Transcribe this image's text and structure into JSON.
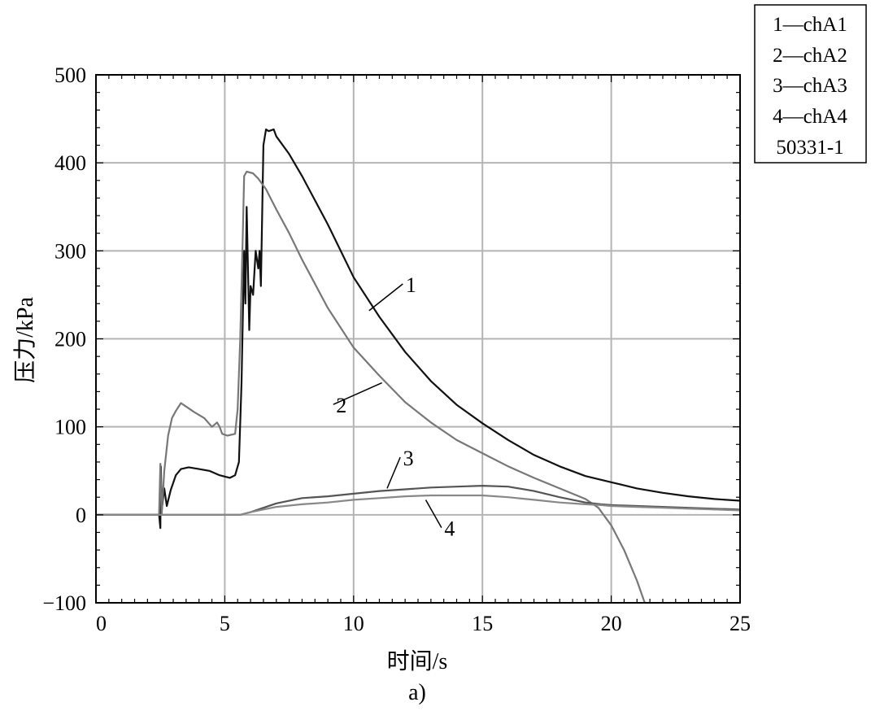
{
  "chart_data": {
    "type": "line",
    "xlabel": "时间/s",
    "ylabel": "压力/kPa",
    "caption": "a)",
    "xlim": [
      0,
      25
    ],
    "ylim": [
      -100,
      500
    ],
    "xticks": [
      0,
      5,
      10,
      15,
      20,
      25
    ],
    "yticks": [
      -100,
      0,
      100,
      200,
      300,
      400,
      500
    ],
    "ytick_labels": [
      "−100",
      "0",
      "100",
      "200",
      "300",
      "400",
      "500"
    ],
    "grid": true,
    "legend": {
      "placement": "top-right, outside",
      "entries": [
        "1—chA1",
        "2—chA2",
        "3—chA3",
        "4—chA4",
        "50331-1"
      ]
    },
    "series": [
      {
        "name": "1",
        "color": "#111111",
        "points": [
          [
            0,
            0
          ],
          [
            2.45,
            0
          ],
          [
            2.5,
            -15
          ],
          [
            2.52,
            55
          ],
          [
            2.55,
            5
          ],
          [
            2.65,
            30
          ],
          [
            2.75,
            10
          ],
          [
            2.9,
            28
          ],
          [
            3.1,
            45
          ],
          [
            3.3,
            52
          ],
          [
            3.6,
            54
          ],
          [
            4.0,
            52
          ],
          [
            4.4,
            50
          ],
          [
            4.8,
            45
          ],
          [
            5.2,
            42
          ],
          [
            5.4,
            45
          ],
          [
            5.55,
            60
          ],
          [
            5.65,
            150
          ],
          [
            5.75,
            300
          ],
          [
            5.8,
            240
          ],
          [
            5.85,
            350
          ],
          [
            5.95,
            210
          ],
          [
            6.0,
            260
          ],
          [
            6.1,
            250
          ],
          [
            6.2,
            300
          ],
          [
            6.3,
            280
          ],
          [
            6.35,
            300
          ],
          [
            6.4,
            260
          ],
          [
            6.5,
            420
          ],
          [
            6.6,
            438
          ],
          [
            6.7,
            436
          ],
          [
            6.9,
            438
          ],
          [
            7.0,
            430
          ],
          [
            7.5,
            410
          ],
          [
            8,
            385
          ],
          [
            9,
            330
          ],
          [
            10,
            270
          ],
          [
            11,
            225
          ],
          [
            12,
            185
          ],
          [
            13,
            152
          ],
          [
            14,
            125
          ],
          [
            15,
            104
          ],
          [
            16,
            85
          ],
          [
            17,
            68
          ],
          [
            18,
            55
          ],
          [
            19,
            44
          ],
          [
            20,
            37
          ],
          [
            21,
            30
          ],
          [
            22,
            25
          ],
          [
            23,
            21
          ],
          [
            24,
            18
          ],
          [
            25,
            16
          ]
        ]
      },
      {
        "name": "2",
        "color": "#777777",
        "points": [
          [
            0,
            0
          ],
          [
            2.45,
            0
          ],
          [
            2.5,
            58
          ],
          [
            2.55,
            0
          ],
          [
            2.65,
            50
          ],
          [
            2.8,
            90
          ],
          [
            2.95,
            110
          ],
          [
            3.1,
            118
          ],
          [
            3.3,
            127
          ],
          [
            3.5,
            123
          ],
          [
            3.8,
            117
          ],
          [
            4.2,
            110
          ],
          [
            4.5,
            100
          ],
          [
            4.7,
            105
          ],
          [
            4.8,
            100
          ],
          [
            4.9,
            92
          ],
          [
            5.1,
            90
          ],
          [
            5.4,
            92
          ],
          [
            5.5,
            120
          ],
          [
            5.6,
            200
          ],
          [
            5.7,
            320
          ],
          [
            5.75,
            385
          ],
          [
            5.85,
            390
          ],
          [
            6.1,
            388
          ],
          [
            6.3,
            382
          ],
          [
            6.6,
            370
          ],
          [
            7,
            347
          ],
          [
            7.5,
            320
          ],
          [
            8,
            290
          ],
          [
            9,
            235
          ],
          [
            10,
            190
          ],
          [
            11,
            158
          ],
          [
            12,
            128
          ],
          [
            13,
            105
          ],
          [
            14,
            85
          ],
          [
            15,
            70
          ],
          [
            16,
            55
          ],
          [
            17,
            42
          ],
          [
            18,
            30
          ],
          [
            19,
            18
          ],
          [
            19.5,
            8
          ],
          [
            20,
            -12
          ],
          [
            20.5,
            -40
          ],
          [
            21,
            -75
          ],
          [
            21.3,
            -100
          ]
        ]
      },
      {
        "name": "3",
        "color": "#555555",
        "points": [
          [
            0,
            0
          ],
          [
            5.6,
            0
          ],
          [
            6,
            3
          ],
          [
            7,
            13
          ],
          [
            8,
            19
          ],
          [
            9,
            21
          ],
          [
            10,
            24
          ],
          [
            11,
            27
          ],
          [
            12,
            29
          ],
          [
            13,
            31
          ],
          [
            14,
            32
          ],
          [
            15,
            33
          ],
          [
            16,
            32
          ],
          [
            17,
            27
          ],
          [
            18,
            20
          ],
          [
            19,
            14
          ],
          [
            19.6,
            12
          ],
          [
            20,
            11
          ],
          [
            21,
            10
          ],
          [
            22,
            9
          ],
          [
            23,
            8
          ],
          [
            24,
            7
          ],
          [
            25,
            6
          ]
        ]
      },
      {
        "name": "4",
        "color": "#888888",
        "points": [
          [
            0,
            0
          ],
          [
            5.6,
            0
          ],
          [
            6,
            3
          ],
          [
            7,
            9
          ],
          [
            8,
            12
          ],
          [
            9,
            14
          ],
          [
            10,
            17
          ],
          [
            11,
            19
          ],
          [
            12,
            21
          ],
          [
            13,
            22
          ],
          [
            14,
            22
          ],
          [
            15,
            22
          ],
          [
            16,
            20
          ],
          [
            17,
            17
          ],
          [
            18,
            14
          ],
          [
            19,
            12
          ],
          [
            19.6,
            11
          ],
          [
            20,
            10
          ],
          [
            21,
            9
          ],
          [
            22,
            8
          ],
          [
            23,
            7
          ],
          [
            24,
            6
          ],
          [
            25,
            5
          ]
        ]
      }
    ],
    "series_labels": [
      {
        "text": "1",
        "x": 12.1,
        "y": 255,
        "pointer_x": 10.6,
        "pointer_y": 232
      },
      {
        "text": "2",
        "x": 9.4,
        "y": 118,
        "pointer_x": 11.1,
        "pointer_y": 150
      },
      {
        "text": "3",
        "x": 12.0,
        "y": 58,
        "pointer_x": 11.3,
        "pointer_y": 30
      },
      {
        "text": "4",
        "x": 13.6,
        "y": -22,
        "pointer_x": 12.8,
        "pointer_y": 17
      }
    ]
  }
}
